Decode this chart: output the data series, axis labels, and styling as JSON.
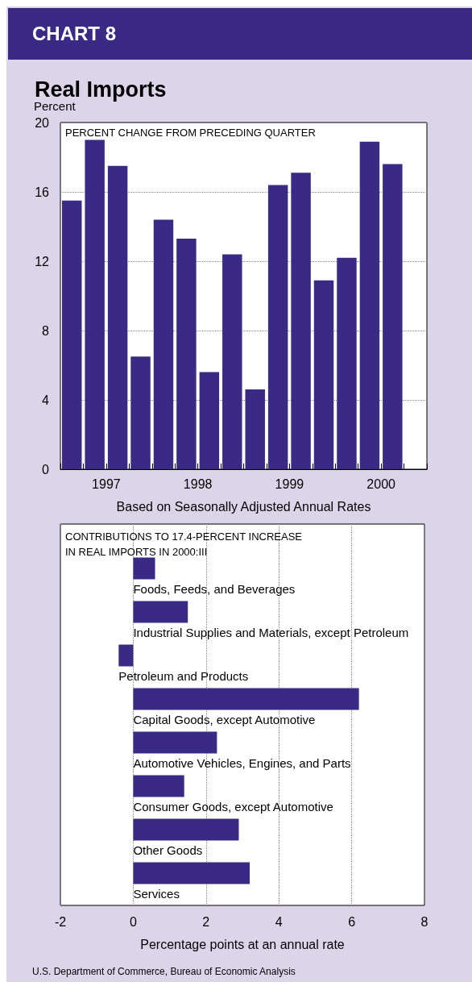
{
  "chart_data": [
    {
      "type": "bar",
      "title": "CHART 8",
      "subtitle": "Real Imports",
      "ylabel": "Percent",
      "xlabel": "Based on Seasonally Adjusted Annual Rates",
      "annotations": [
        "PERCENT CHANGE FROM PRECEDING QUARTER"
      ],
      "categories": [
        null,
        "1997",
        null,
        null,
        null,
        "1998",
        null,
        null,
        null,
        "1999",
        null,
        null,
        null,
        "2000",
        null,
        null
      ],
      "values": [
        15.5,
        19.0,
        17.5,
        6.5,
        14.4,
        13.3,
        5.6,
        12.4,
        4.6,
        16.4,
        17.1,
        10.9,
        12.2,
        18.9,
        17.6,
        null
      ],
      "color": "#3a2a85",
      "ylim": [
        0,
        20
      ],
      "yticks": [
        0,
        4,
        8,
        12,
        16,
        20
      ],
      "grid": "y"
    },
    {
      "type": "bar",
      "orientation": "horizontal",
      "title": "CONTRIBUTIONS TO 17.4-PERCENT INCREASE\nIN REAL IMPORTS IN 2000:III",
      "xlabel": "Percentage points at an annual rate",
      "annotations": [
        "U.S. Department of Commerce, Bureau of Economic Analysis"
      ],
      "categories": [
        "Foods, Feeds, and Beverages",
        "Industrial Supplies and Materials, except Petroleum",
        "Petroleum and Products",
        "Capital Goods, except Automotive",
        "Automotive Vehicles, Engines, and Parts",
        "Consumer Goods, except Automotive",
        "Other Goods",
        "Services"
      ],
      "values": [
        0.6,
        1.5,
        -0.4,
        6.2,
        2.3,
        1.4,
        2.9,
        3.2
      ],
      "color": "#3a2a85",
      "xlim": [
        -2,
        8
      ],
      "xticks": [
        -2,
        0,
        2,
        4,
        6,
        8
      ],
      "grid": "x"
    }
  ]
}
